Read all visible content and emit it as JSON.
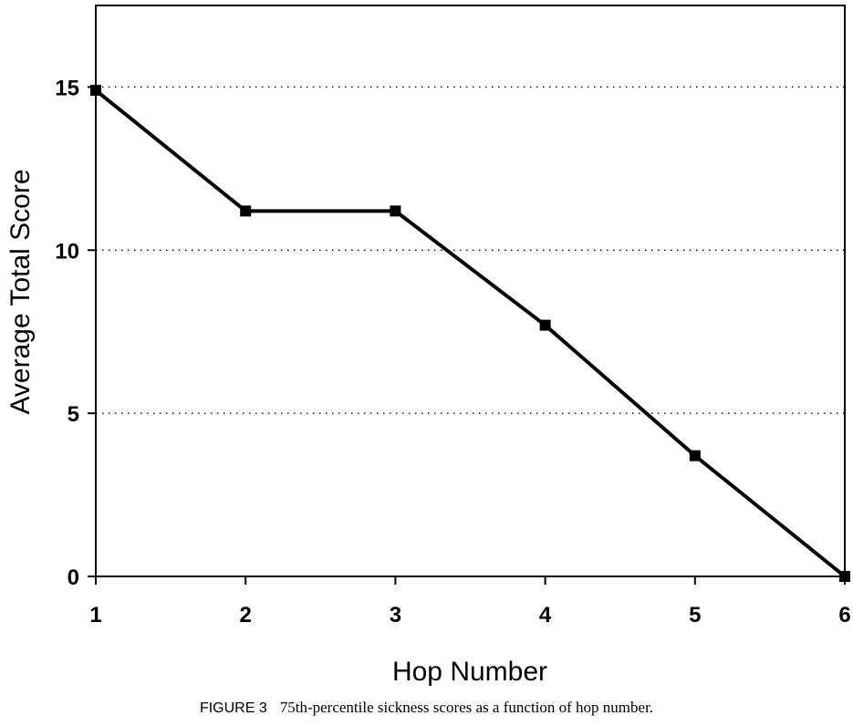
{
  "caption": {
    "label": "FIGURE 3",
    "text": "75th-percentile sickness scores as a function of hop number."
  },
  "chart_data": {
    "type": "line",
    "title": "",
    "xlabel": "Hop Number",
    "ylabel": "Average Total Score",
    "x": [
      1,
      2,
      3,
      4,
      5,
      6
    ],
    "series": [
      {
        "values": [
          14.9,
          11.2,
          11.2,
          7.7,
          3.7,
          0.0
        ]
      }
    ],
    "xlim": [
      1,
      6
    ],
    "ylim": [
      0,
      17.5
    ],
    "xticks": [
      "1",
      "2",
      "3",
      "4",
      "5",
      "6"
    ],
    "yticks": [
      0,
      5,
      10,
      15
    ],
    "grid": "horizontal dotted at 5, 10, 15",
    "legend": "none",
    "colors": {
      "line": "#000000",
      "marker": "#000000",
      "grid": "#000000"
    }
  }
}
